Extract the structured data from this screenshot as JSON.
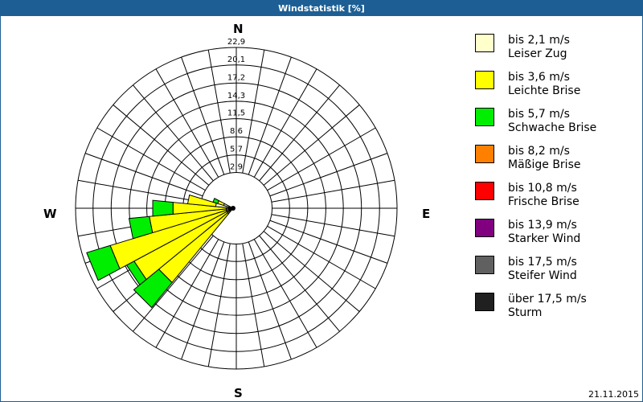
{
  "title": "Windstatistik [%]",
  "date": "21.11.2015",
  "compass": {
    "n": "N",
    "e": "E",
    "s": "S",
    "w": "W"
  },
  "legend": [
    {
      "range": "bis 2,1 m/s",
      "name": "Leiser Zug",
      "color": "#ffffcc"
    },
    {
      "range": "bis 3,6 m/s",
      "name": "Leichte Brise",
      "color": "#ffff00"
    },
    {
      "range": "bis 5,7 m/s",
      "name": "Schwache Brise",
      "color": "#00ee00"
    },
    {
      "range": "bis 8,2 m/s",
      "name": "Mäßige Brise",
      "color": "#ff8000"
    },
    {
      "range": "bis 10,8 m/s",
      "name": "Frische Brise",
      "color": "#ff0000"
    },
    {
      "range": "bis 13,9 m/s",
      "name": "Starker Wind",
      "color": "#800080"
    },
    {
      "range": "bis 17,5 m/s",
      "name": "Steifer Wind",
      "color": "#606060"
    },
    {
      "range": "über 17,5 m/s",
      "name": "Sturm",
      "color": "#202020"
    }
  ],
  "chart_data": {
    "type": "wind-rose",
    "title": "Windstatistik [%]",
    "unit": "%",
    "ring_labels": [
      "2,9",
      "5,7",
      "8,6",
      "11,5",
      "14,3",
      "17,2",
      "20,1",
      "22,9"
    ],
    "ring_values": [
      2.9,
      5.7,
      8.6,
      11.5,
      14.3,
      17.2,
      20.1,
      22.9
    ],
    "rmax": 22.9,
    "sectors": 32,
    "speed_classes": [
      "bis 2,1 m/s",
      "bis 3,6 m/s",
      "bis 5,7 m/s",
      "bis 8,2 m/s",
      "bis 10,8 m/s",
      "bis 13,9 m/s",
      "bis 17,5 m/s",
      "über 17,5 m/s"
    ],
    "petals": [
      {
        "direction_deg": 225.0,
        "cumulative": [
          1.0,
          13.7,
          18.3
        ]
      },
      {
        "direction_deg": 236.25,
        "cumulative": [
          1.0,
          16.0,
          17.2
        ]
      },
      {
        "direction_deg": 247.5,
        "cumulative": [
          1.0,
          18.3,
          21.8
        ]
      },
      {
        "direction_deg": 258.75,
        "cumulative": [
          1.0,
          12.0,
          14.9
        ]
      },
      {
        "direction_deg": 270.0,
        "cumulative": [
          1.0,
          8.6,
          11.5
        ]
      },
      {
        "direction_deg": 281.25,
        "cumulative": [
          2.5,
          6.5,
          6.5
        ]
      },
      {
        "direction_deg": 292.5,
        "cumulative": [
          1.4,
          2.3,
          3.0
        ]
      }
    ]
  }
}
